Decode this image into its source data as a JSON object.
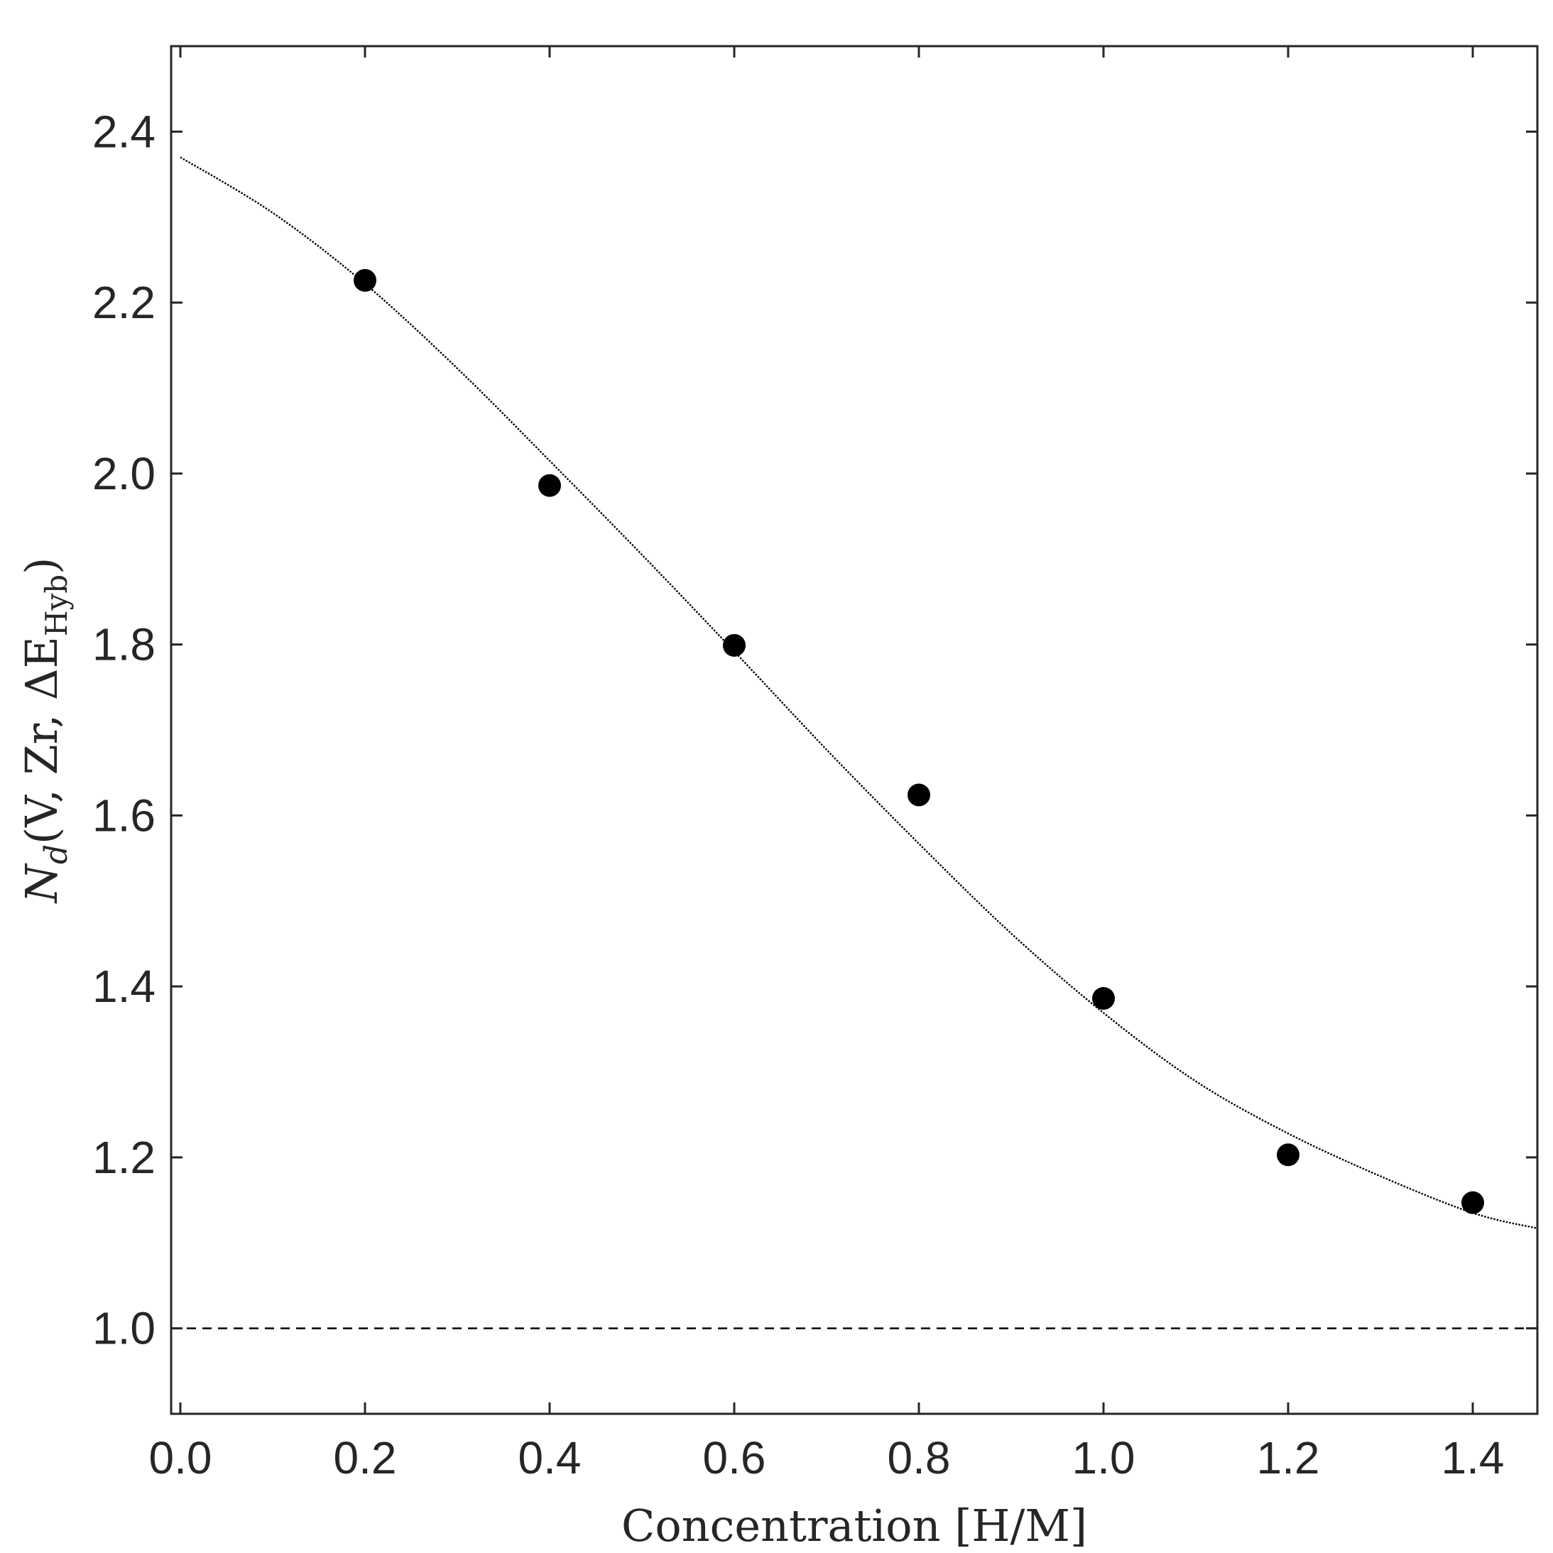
{
  "chart_data": {
    "type": "scatter",
    "xlabel": "Concentration [H/M]",
    "ylabel": {
      "prefix": "N",
      "subscript": "d",
      "args": "(V, Zr, ΔE",
      "args_subscript": "Hyb",
      "close": ")"
    },
    "xlim": [
      -0.01,
      1.47
    ],
    "ylim": [
      0.9,
      2.5
    ],
    "x_ticks": [
      0.0,
      0.2,
      0.4,
      0.6,
      0.8,
      1.0,
      1.2,
      1.4
    ],
    "x_tick_labels": [
      "0.0",
      "0.2",
      "0.4",
      "0.6",
      "0.8",
      "1.0",
      "1.2",
      "1.4"
    ],
    "y_ticks": [
      1.0,
      1.2,
      1.4,
      1.6,
      1.8,
      2.0,
      2.2,
      2.4
    ],
    "y_tick_labels": [
      "1.0",
      "1.2",
      "1.4",
      "1.6",
      "1.8",
      "2.0",
      "2.2",
      "2.4"
    ],
    "grid": false,
    "legend": "none",
    "series": [
      {
        "kind": "points",
        "color": "#000000",
        "x": [
          0.2,
          0.4,
          0.6,
          0.8,
          1.0,
          1.2,
          1.4
        ],
        "y": [
          2.226,
          1.986,
          1.799,
          1.624,
          1.386,
          1.203,
          1.147
        ]
      },
      {
        "kind": "fit-curve",
        "style": "dotted",
        "color": "#000000",
        "x": [
          0.0,
          0.1,
          0.2,
          0.3,
          0.4,
          0.5,
          0.6,
          0.7,
          0.8,
          0.9,
          1.0,
          1.1,
          1.2,
          1.3,
          1.4,
          1.47
        ],
        "y": [
          2.37,
          2.305,
          2.222,
          2.123,
          2.015,
          1.905,
          1.792,
          1.677,
          1.567,
          1.462,
          1.369,
          1.289,
          1.228,
          1.178,
          1.135,
          1.117
        ]
      },
      {
        "kind": "reference-line",
        "style": "dashed",
        "color": "#000000",
        "y": 1.0
      }
    ]
  }
}
